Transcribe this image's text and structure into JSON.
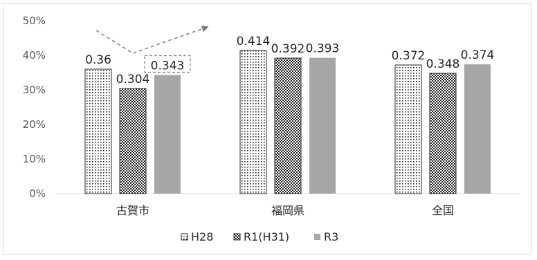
{
  "chart_data": {
    "type": "bar",
    "categories": [
      "古賀市",
      "福岡県",
      "全国"
    ],
    "series": [
      {
        "name": "H28",
        "values": [
          0.36,
          0.414,
          0.372
        ],
        "pattern": "dots"
      },
      {
        "name": "R1(H31)",
        "values": [
          0.304,
          0.392,
          0.348
        ],
        "pattern": "checker"
      },
      {
        "name": "R3",
        "values": [
          0.343,
          0.393,
          0.374
        ],
        "pattern": "solid",
        "color": "#a6a6a6"
      }
    ],
    "y_ticks": [
      "0%",
      "10%",
      "20%",
      "30%",
      "40%",
      "50%"
    ],
    "ylim": [
      0,
      0.5
    ],
    "grid": false,
    "legend_position": "bottom",
    "legend_labels": [
      "H28",
      "R1(H31)",
      "R3"
    ],
    "annotation": {
      "series": "R3",
      "category": "古賀市",
      "style": "dashed-box-with-trend-arrow"
    },
    "colors": {
      "axis": "#d9d9d9",
      "bar_edge": "#262626",
      "arrow": "#7f7f7f",
      "solid": "#a6a6a6"
    }
  }
}
